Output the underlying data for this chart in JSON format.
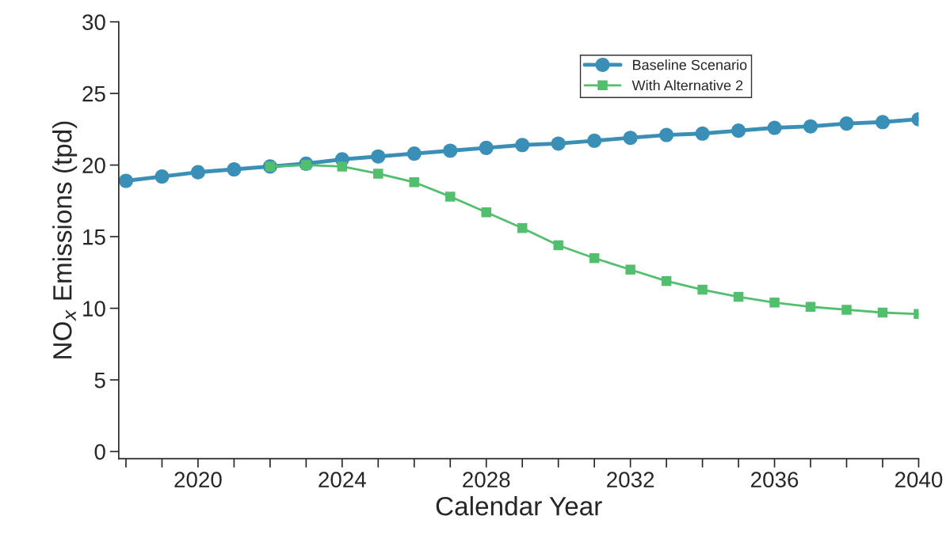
{
  "chart_data": {
    "type": "line",
    "xlabel": "Calendar Year",
    "ylabel": "NO$_{x}$ Emissions (tpd)",
    "xlim": [
      2017.8,
      2040
    ],
    "ylim": [
      -0.5,
      30
    ],
    "xticks": [
      {
        "value": 2018,
        "label": null
      },
      {
        "value": 2019,
        "label": null
      },
      2020,
      {
        "value": 2021,
        "label": null
      },
      {
        "value": 2022,
        "label": null
      },
      {
        "value": 2023,
        "label": null
      },
      2024,
      {
        "value": 2025,
        "label": null
      },
      {
        "value": 2026,
        "label": null
      },
      {
        "value": 2027,
        "label": null
      },
      2028,
      {
        "value": 2029,
        "label": null
      },
      {
        "value": 2030,
        "label": null
      },
      {
        "value": 2031,
        "label": null
      },
      2032,
      {
        "value": 2033,
        "label": null
      },
      {
        "value": 2034,
        "label": null
      },
      {
        "value": 2035,
        "label": null
      },
      2036,
      {
        "value": 2037,
        "label": null
      },
      {
        "value": 2038,
        "label": null
      },
      {
        "value": 2039,
        "label": null
      },
      2040
    ],
    "yticks": [
      0,
      5,
      10,
      15,
      20,
      25,
      30
    ],
    "grid": false,
    "legend": "top right",
    "line_style": "solid",
    "series": [
      {
        "name": "Baseline Scenario",
        "color": "#3a8fb7",
        "marker": "circle",
        "x": [
          2018,
          2019,
          2020,
          2021,
          2022,
          2023,
          2024,
          2025,
          2026,
          2027,
          2028,
          2029,
          2030,
          2031,
          2032,
          2033,
          2034,
          2035,
          2036,
          2037,
          2038,
          2039,
          2040
        ],
        "values": [
          18.9,
          19.2,
          19.5,
          19.7,
          19.9,
          20.1,
          20.4,
          20.6,
          20.8,
          21.0,
          21.2,
          21.4,
          21.5,
          21.7,
          21.9,
          22.1,
          22.2,
          22.4,
          22.6,
          22.7,
          22.9,
          23.0,
          23.2
        ]
      },
      {
        "name": "With Alternative 2",
        "color": "#52bf6e",
        "marker": "square",
        "x": [
          2022,
          2023,
          2024,
          2025,
          2026,
          2027,
          2028,
          2029,
          2030,
          2031,
          2032,
          2033,
          2034,
          2035,
          2036,
          2037,
          2038,
          2039,
          2040
        ],
        "values": [
          19.9,
          20.0,
          19.9,
          19.4,
          18.8,
          17.8,
          16.7,
          15.6,
          14.4,
          13.5,
          12.7,
          11.9,
          11.3,
          10.8,
          10.4,
          10.1,
          9.9,
          9.7,
          9.6
        ]
      }
    ]
  }
}
